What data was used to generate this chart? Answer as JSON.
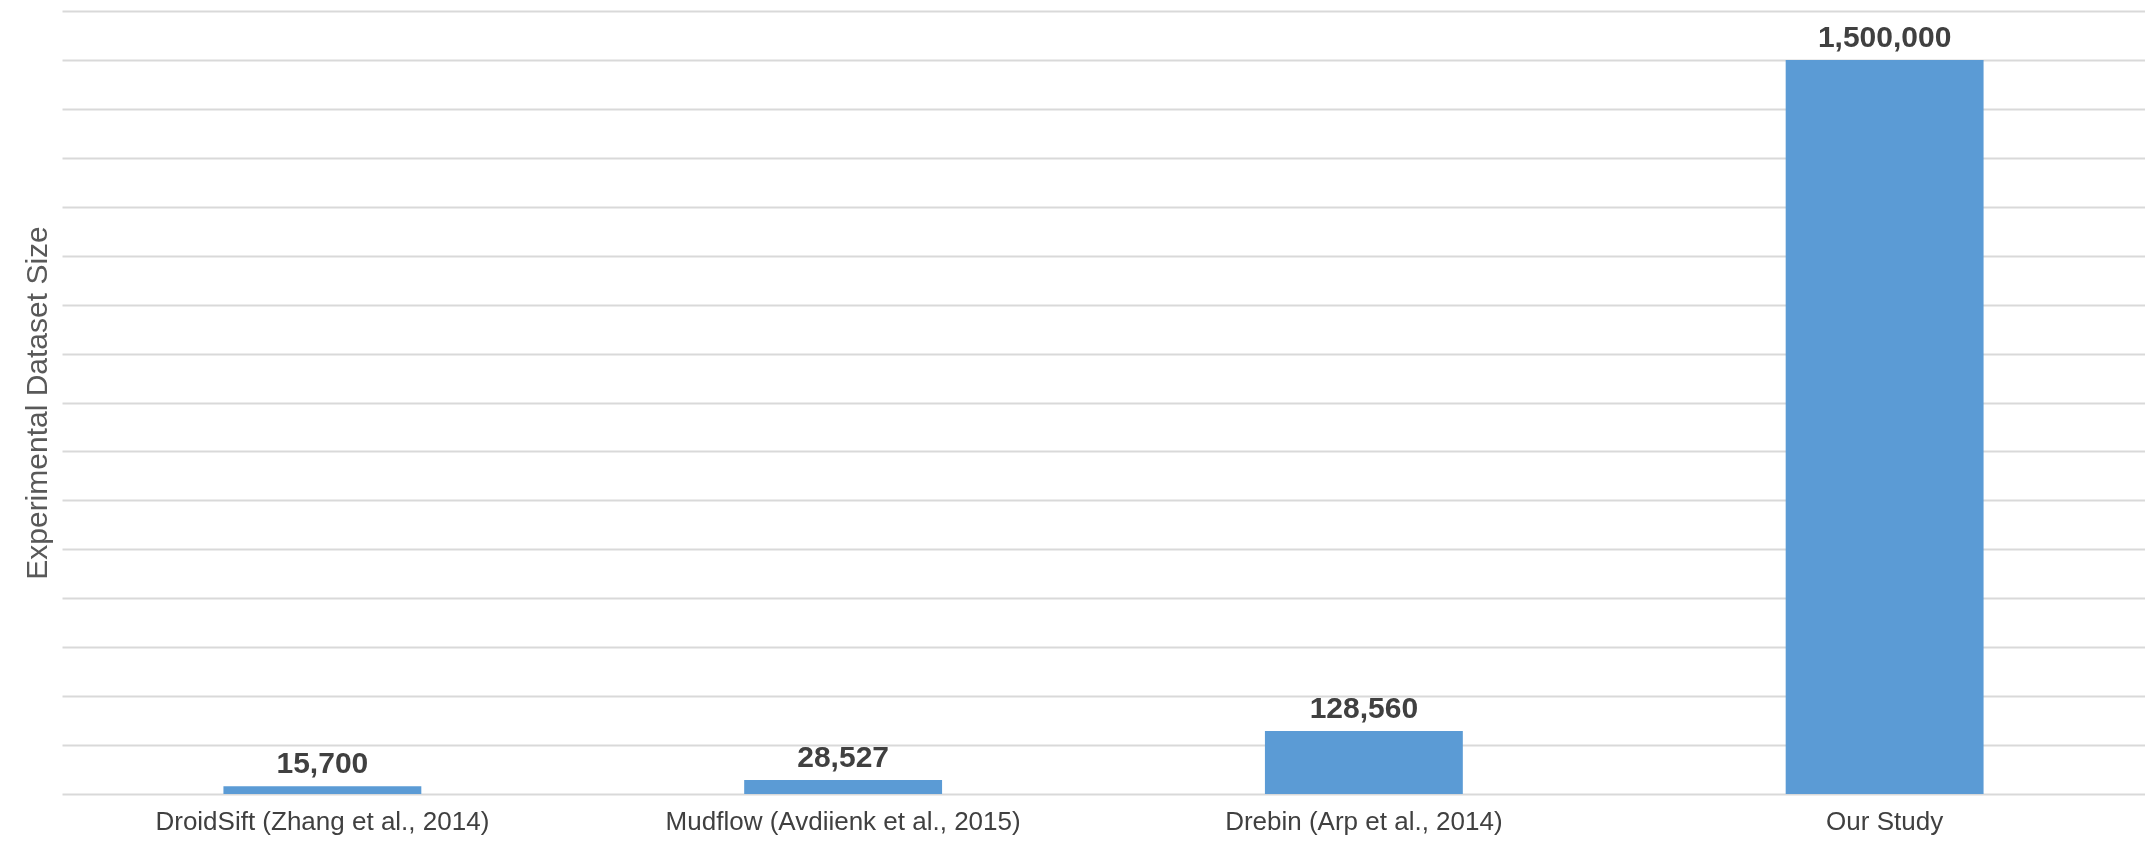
{
  "chart_data": {
    "type": "bar",
    "ylabel": "Experimental Dataset Size",
    "categories": [
      "DroidSift (Zhang et al., 2014)",
      "Mudflow (Avdiienk et al., 2015)",
      "Drebin (Arp et al., 2014)",
      "Our Study"
    ],
    "values": [
      15700,
      28527,
      128560,
      1500000
    ],
    "value_labels": [
      "15,700",
      "28,527",
      "128,560",
      "1,500,000"
    ],
    "color": "#5b9bd5",
    "grid": "y",
    "tick_labels": "x"
  }
}
